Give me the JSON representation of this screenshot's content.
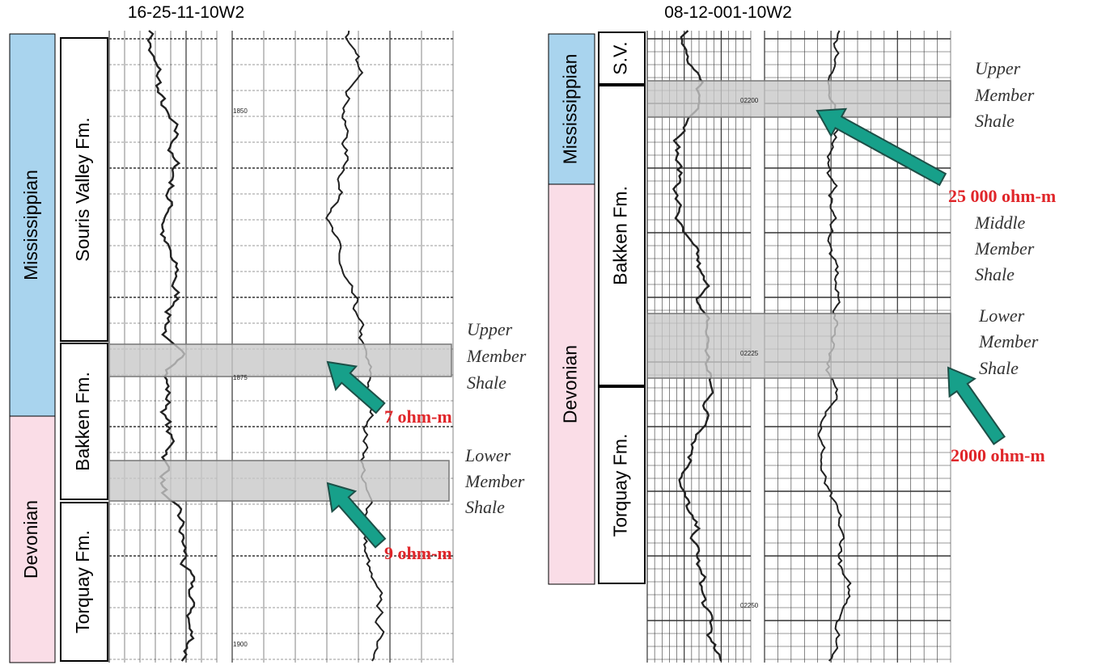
{
  "wells": [
    {
      "name": "16-25-11-10W2",
      "periods": [
        "Mississippian",
        "Devonian"
      ],
      "formations": [
        "Souris Valley Fm.",
        "Bakken Fm.",
        "Torquay Fm."
      ],
      "depths": [
        "1850",
        "1875",
        "1900"
      ],
      "annotations": [
        {
          "lines": [
            "Upper",
            "Member",
            "Shale"
          ],
          "resistivity": "7 ohm-m"
        },
        {
          "lines": [
            "Lower",
            "Member",
            "Shale"
          ],
          "resistivity": "9 ohm-m"
        }
      ]
    },
    {
      "name": "08-12-001-10W2",
      "periods": [
        "Mississippian",
        "Devonian"
      ],
      "formations": [
        "S.V.",
        "Bakken Fm.",
        "Torquay Fm."
      ],
      "depths": [
        "02200",
        "02225",
        "02250"
      ],
      "annotations": [
        {
          "lines": [
            "Upper",
            "Member",
            "Shale"
          ],
          "resistivity": "25 000 ohm-m"
        },
        {
          "lines": [
            "Middle",
            "Member",
            "Shale"
          ]
        },
        {
          "lines": [
            "Lower",
            "Member",
            "Shale"
          ],
          "resistivity": "2000 ohm-m"
        }
      ]
    }
  ]
}
